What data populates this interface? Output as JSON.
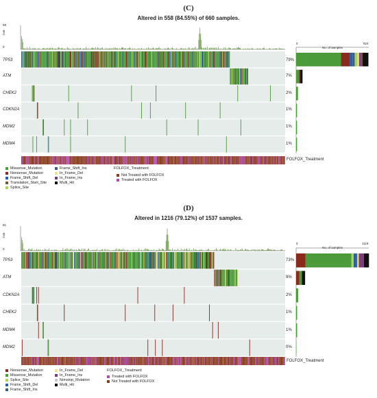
{
  "panels": [
    {
      "letter": "(C)",
      "title": "Altered in 558 (84.55%) of 660 samples.",
      "tmb_label": "TMB",
      "tmb_max": "59",
      "tmb_min": "0",
      "bar_min": "0",
      "bar_max": "524",
      "bar_axis_label": "No. of samples",
      "genes": [
        {
          "name": "TP53",
          "pct": "79%"
        },
        {
          "name": "ATM",
          "pct": "7%"
        },
        {
          "name": "CHEK2",
          "pct": "2%"
        },
        {
          "name": "CDKN2A",
          "pct": "1%"
        },
        {
          "name": "MDM2",
          "pct": "1%"
        },
        {
          "name": "MDM4",
          "pct": "1%"
        }
      ],
      "track_label": "FOLFOX_Treatment",
      "legend_mut": [
        {
          "label": "Missense_Mutation",
          "color": "#4b9b3a"
        },
        {
          "label": "Nonsense_Mutation",
          "color": "#8a2a1c"
        },
        {
          "label": "Frame_Shift_Del",
          "color": "#2b5fa8"
        },
        {
          "label": "Translation_Start_Site",
          "color": "#6f5b3a"
        },
        {
          "label": "Splice_Site",
          "color": "#a8d65a"
        },
        {
          "label": "Frame_Shift_Ins",
          "color": "#3d5c80"
        },
        {
          "label": "In_Frame_Del",
          "color": "#f4e08a"
        },
        {
          "label": "In_Frame_Ins",
          "color": "#7a3d7a"
        },
        {
          "label": "Multi_Hit",
          "color": "#111111"
        }
      ],
      "legend_treat_title": "FOLFOX_Treatment",
      "legend_treat": [
        {
          "label": "Not Treated with FOLFOX",
          "color": "#8a3d1c"
        },
        {
          "label": "Treated with FOLFOX",
          "color": "#b54aa8"
        }
      ]
    },
    {
      "letter": "(D)",
      "title": "Altered in 1216 (79.12%) of 1537 samples.",
      "tmb_label": "TMB",
      "tmb_max": "81",
      "tmb_min": "0",
      "bar_min": "0",
      "bar_max": "1119",
      "bar_axis_label": "No. of samples",
      "genes": [
        {
          "name": "TP53",
          "pct": "73%"
        },
        {
          "name": "ATM",
          "pct": "9%"
        },
        {
          "name": "CDKN2A",
          "pct": "2%"
        },
        {
          "name": "CHEK2",
          "pct": "1%"
        },
        {
          "name": "MDM4",
          "pct": "1%"
        },
        {
          "name": "MDM2",
          "pct": "0%"
        }
      ],
      "track_label": "FOLFOX_Treatment",
      "legend_mut": [
        {
          "label": "Nonsense_Mutation",
          "color": "#8a2a1c"
        },
        {
          "label": "Missense_Mutation",
          "color": "#4b9b3a"
        },
        {
          "label": "Splice_Site",
          "color": "#a8d65a"
        },
        {
          "label": "Frame_Shift_Del",
          "color": "#2b5fa8"
        },
        {
          "label": "Frame_Shift_Ins",
          "color": "#3d5c80"
        },
        {
          "label": "In_Frame_Del",
          "color": "#f4e08a"
        },
        {
          "label": "In_Frame_Ins",
          "color": "#7a3d7a"
        },
        {
          "label": "Nonstop_Mutation",
          "color": "#c8c8c8"
        },
        {
          "label": "Multi_Hit",
          "color": "#111111"
        }
      ],
      "legend_treat_title": "FOLFOX_Treatment",
      "legend_treat": [
        {
          "label": "Treated with FOLFOX",
          "color": "#b54aa8"
        },
        {
          "label": "Not Treated with FOLFOX",
          "color": "#8a3d1c"
        }
      ]
    }
  ],
  "chart_data": [
    {
      "type": "heatmap",
      "title": "Altered in 558 (84.55%) of 660 samples.",
      "samples_total": 660,
      "samples_altered": 558,
      "genes": [
        "TP53",
        "ATM",
        "CHEK2",
        "CDKN2A",
        "MDM2",
        "MDM4"
      ],
      "altered_pct": [
        79,
        7,
        2,
        1,
        1,
        1
      ],
      "tmb_range": [
        0,
        59
      ],
      "gene_bar_axis": [
        0,
        524
      ],
      "gene_bar_composition": [
        {
          "gene": "TP53",
          "segments": [
            {
              "type": "Missense_Mutation",
              "fraction": 0.62
            },
            {
              "type": "Nonsense_Mutation",
              "fraction": 0.12
            },
            {
              "type": "Frame_Shift_Del",
              "fraction": 0.04
            },
            {
              "type": "Frame_Shift_Ins",
              "fraction": 0.03
            },
            {
              "type": "Splice_Site",
              "fraction": 0.04
            },
            {
              "type": "In_Frame_Del",
              "fraction": 0.02
            },
            {
              "type": "In_Frame_Ins",
              "fraction": 0.03
            },
            {
              "type": "Translation_Start_Site",
              "fraction": 0.02
            },
            {
              "type": "Multi_Hit",
              "fraction": 0.08
            }
          ]
        },
        {
          "gene": "ATM",
          "segments": [
            {
              "type": "Missense_Mutation",
              "fraction": 0.45
            },
            {
              "type": "Nonsense_Mutation",
              "fraction": 0.2
            },
            {
              "type": "Multi_Hit",
              "fraction": 0.35
            }
          ]
        },
        {
          "gene": "CHEK2",
          "segments": [
            {
              "type": "Missense_Mutation",
              "fraction": 1.0
            }
          ]
        },
        {
          "gene": "CDKN2A",
          "segments": [
            {
              "type": "Missense_Mutation",
              "fraction": 1.0
            }
          ]
        },
        {
          "gene": "MDM2",
          "segments": [
            {
              "type": "Missense_Mutation",
              "fraction": 1.0
            }
          ]
        },
        {
          "gene": "MDM4",
          "segments": [
            {
              "type": "Missense_Mutation",
              "fraction": 1.0
            }
          ]
        }
      ],
      "annotation_track": "FOLFOX_Treatment",
      "annotation_categories": [
        "Not Treated with FOLFOX",
        "Treated with FOLFOX"
      ],
      "legend_placement": "bottom"
    },
    {
      "type": "heatmap",
      "title": "Altered in 1216 (79.12%) of 1537 samples.",
      "samples_total": 1537,
      "samples_altered": 1216,
      "genes": [
        "TP53",
        "ATM",
        "CDKN2A",
        "CHEK2",
        "MDM4",
        "MDM2"
      ],
      "altered_pct": [
        73,
        9,
        2,
        1,
        1,
        0
      ],
      "tmb_range": [
        0,
        81
      ],
      "gene_bar_axis": [
        0,
        1119
      ],
      "gene_bar_composition": [
        {
          "gene": "TP53",
          "segments": [
            {
              "type": "Nonsense_Mutation",
              "fraction": 0.13
            },
            {
              "type": "Missense_Mutation",
              "fraction": 0.63
            },
            {
              "type": "Splice_Site",
              "fraction": 0.03
            },
            {
              "type": "Frame_Shift_Del",
              "fraction": 0.03
            },
            {
              "type": "Frame_Shift_Ins",
              "fraction": 0.02
            },
            {
              "type": "In_Frame_Del",
              "fraction": 0.02
            },
            {
              "type": "In_Frame_Ins",
              "fraction": 0.07
            },
            {
              "type": "Multi_Hit",
              "fraction": 0.07
            }
          ]
        },
        {
          "gene": "ATM",
          "segments": [
            {
              "type": "Nonsense_Mutation",
              "fraction": 0.35
            },
            {
              "type": "Missense_Mutation",
              "fraction": 0.3
            },
            {
              "type": "Multi_Hit",
              "fraction": 0.35
            }
          ]
        },
        {
          "gene": "CDKN2A",
          "segments": [
            {
              "type": "Missense_Mutation",
              "fraction": 1.0
            }
          ]
        },
        {
          "gene": "CHEK2",
          "segments": [
            {
              "type": "Missense_Mutation",
              "fraction": 1.0
            }
          ]
        },
        {
          "gene": "MDM4",
          "segments": [
            {
              "type": "Missense_Mutation",
              "fraction": 1.0
            }
          ]
        },
        {
          "gene": "MDM2",
          "segments": [
            {
              "type": "Missense_Mutation",
              "fraction": 1.0
            }
          ]
        }
      ],
      "annotation_track": "FOLFOX_Treatment",
      "annotation_categories": [
        "Treated with FOLFOX",
        "Not Treated with FOLFOX"
      ],
      "legend_placement": "bottom"
    }
  ]
}
